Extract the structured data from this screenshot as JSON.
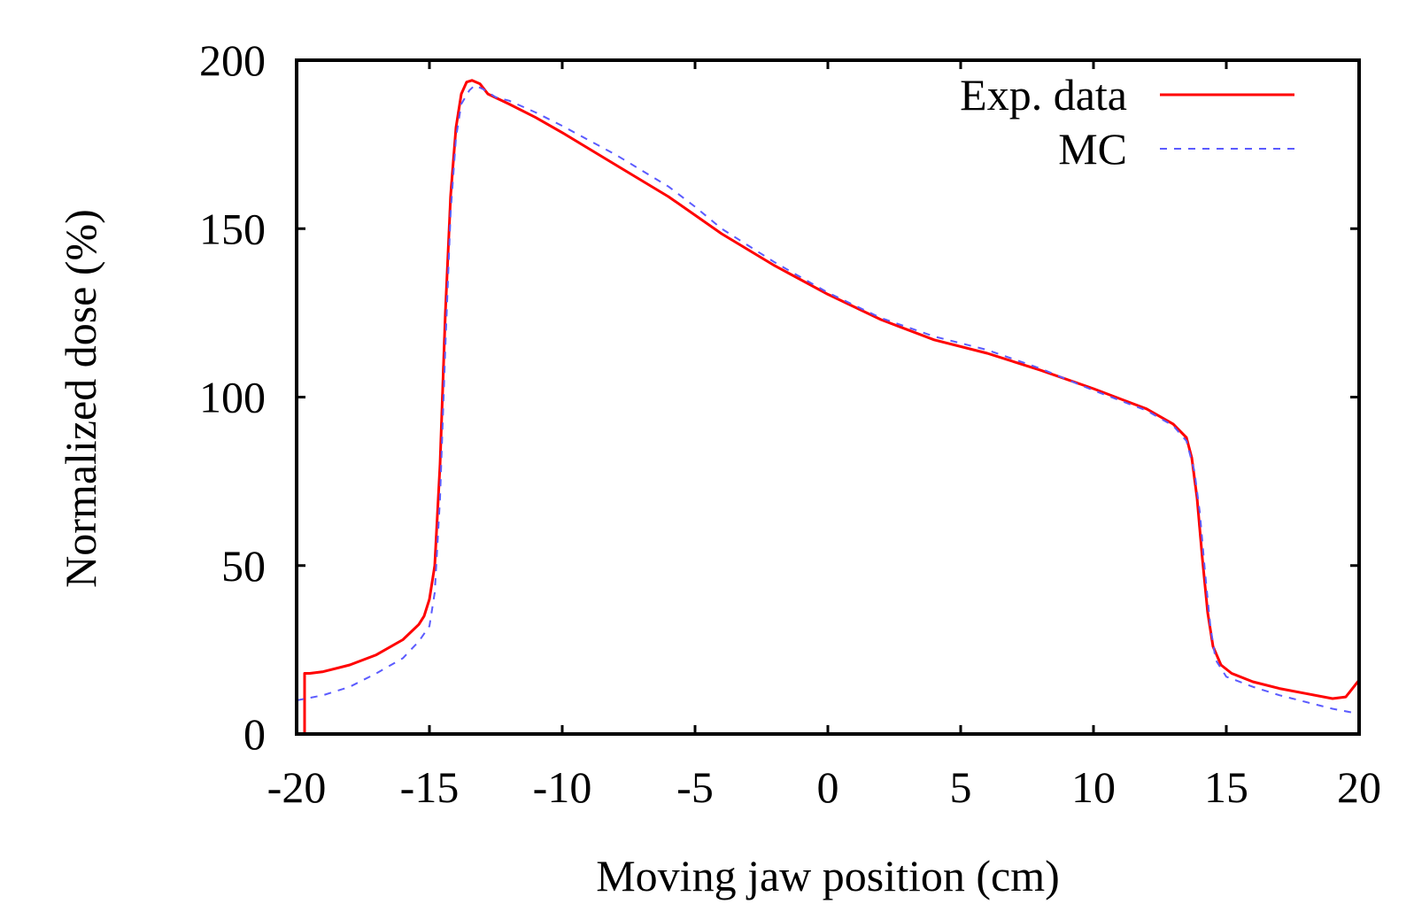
{
  "chart_data": {
    "type": "line",
    "title": "",
    "xlabel": "Moving jaw position (cm)",
    "ylabel": "Normalized dose (%)",
    "xlim": [
      -20,
      20
    ],
    "ylim": [
      0,
      200
    ],
    "xticks": [
      -20,
      -15,
      -10,
      -5,
      0,
      5,
      10,
      15,
      20
    ],
    "yticks": [
      0,
      50,
      100,
      150,
      200
    ],
    "grid": false,
    "legend_position": "top-right",
    "series": [
      {
        "name": "Exp. data",
        "color": "#ff0000",
        "style": "solid",
        "points": [
          [
            -19.7,
            0
          ],
          [
            -19.7,
            18
          ],
          [
            -19.5,
            18
          ],
          [
            -19,
            18.5
          ],
          [
            -18,
            20.5
          ],
          [
            -17,
            23.5
          ],
          [
            -16,
            28
          ],
          [
            -15.4,
            32.5
          ],
          [
            -15.2,
            35
          ],
          [
            -15,
            40
          ],
          [
            -14.8,
            50
          ],
          [
            -14.6,
            80
          ],
          [
            -14.4,
            125
          ],
          [
            -14.2,
            160
          ],
          [
            -14,
            180
          ],
          [
            -13.8,
            190
          ],
          [
            -13.6,
            193.5
          ],
          [
            -13.4,
            194
          ],
          [
            -13.1,
            193
          ],
          [
            -12.8,
            190
          ],
          [
            -12,
            187
          ],
          [
            -11,
            183
          ],
          [
            -10,
            178.5
          ],
          [
            -8,
            169
          ],
          [
            -6,
            159.5
          ],
          [
            -5,
            154
          ],
          [
            -4,
            148.5
          ],
          [
            -2,
            139
          ],
          [
            0,
            130.5
          ],
          [
            2,
            123
          ],
          [
            4,
            117
          ],
          [
            6,
            113
          ],
          [
            8,
            108
          ],
          [
            10,
            102.5
          ],
          [
            12,
            96.5
          ],
          [
            13,
            92
          ],
          [
            13.5,
            88
          ],
          [
            13.7,
            82
          ],
          [
            13.9,
            70
          ],
          [
            14.1,
            52
          ],
          [
            14.3,
            36
          ],
          [
            14.5,
            26
          ],
          [
            14.8,
            20.5
          ],
          [
            15.2,
            18
          ],
          [
            16,
            15.5
          ],
          [
            17,
            13.5
          ],
          [
            18,
            12
          ],
          [
            19,
            10.5
          ],
          [
            19.5,
            11
          ],
          [
            20,
            16
          ]
        ]
      },
      {
        "name": "MC",
        "color": "#5b5bff",
        "style": "dashed",
        "points": [
          [
            -20,
            10
          ],
          [
            -19,
            11.5
          ],
          [
            -18,
            14
          ],
          [
            -17,
            18
          ],
          [
            -16,
            22.5
          ],
          [
            -15.4,
            27.5
          ],
          [
            -15,
            32
          ],
          [
            -14.8,
            42
          ],
          [
            -14.6,
            70
          ],
          [
            -14.4,
            115
          ],
          [
            -14.2,
            155
          ],
          [
            -14,
            177
          ],
          [
            -13.8,
            187
          ],
          [
            -13.5,
            191
          ],
          [
            -13.3,
            192.5
          ],
          [
            -13,
            191.5
          ],
          [
            -12.5,
            189
          ],
          [
            -12,
            188
          ],
          [
            -11,
            184.5
          ],
          [
            -10,
            180.5
          ],
          [
            -8,
            172
          ],
          [
            -6,
            162.5
          ],
          [
            -5,
            156.5
          ],
          [
            -4,
            150
          ],
          [
            -2,
            140
          ],
          [
            0,
            131
          ],
          [
            2,
            123.5
          ],
          [
            4,
            118
          ],
          [
            6,
            114
          ],
          [
            8,
            108.5
          ],
          [
            10,
            102
          ],
          [
            12,
            96
          ],
          [
            13,
            91.5
          ],
          [
            13.5,
            87
          ],
          [
            13.8,
            78
          ],
          [
            14,
            66
          ],
          [
            14.2,
            48
          ],
          [
            14.4,
            32
          ],
          [
            14.6,
            22
          ],
          [
            15,
            17
          ],
          [
            16,
            14
          ],
          [
            17,
            11.5
          ],
          [
            18,
            9.5
          ],
          [
            19,
            7.5
          ],
          [
            20,
            6
          ]
        ]
      }
    ]
  }
}
